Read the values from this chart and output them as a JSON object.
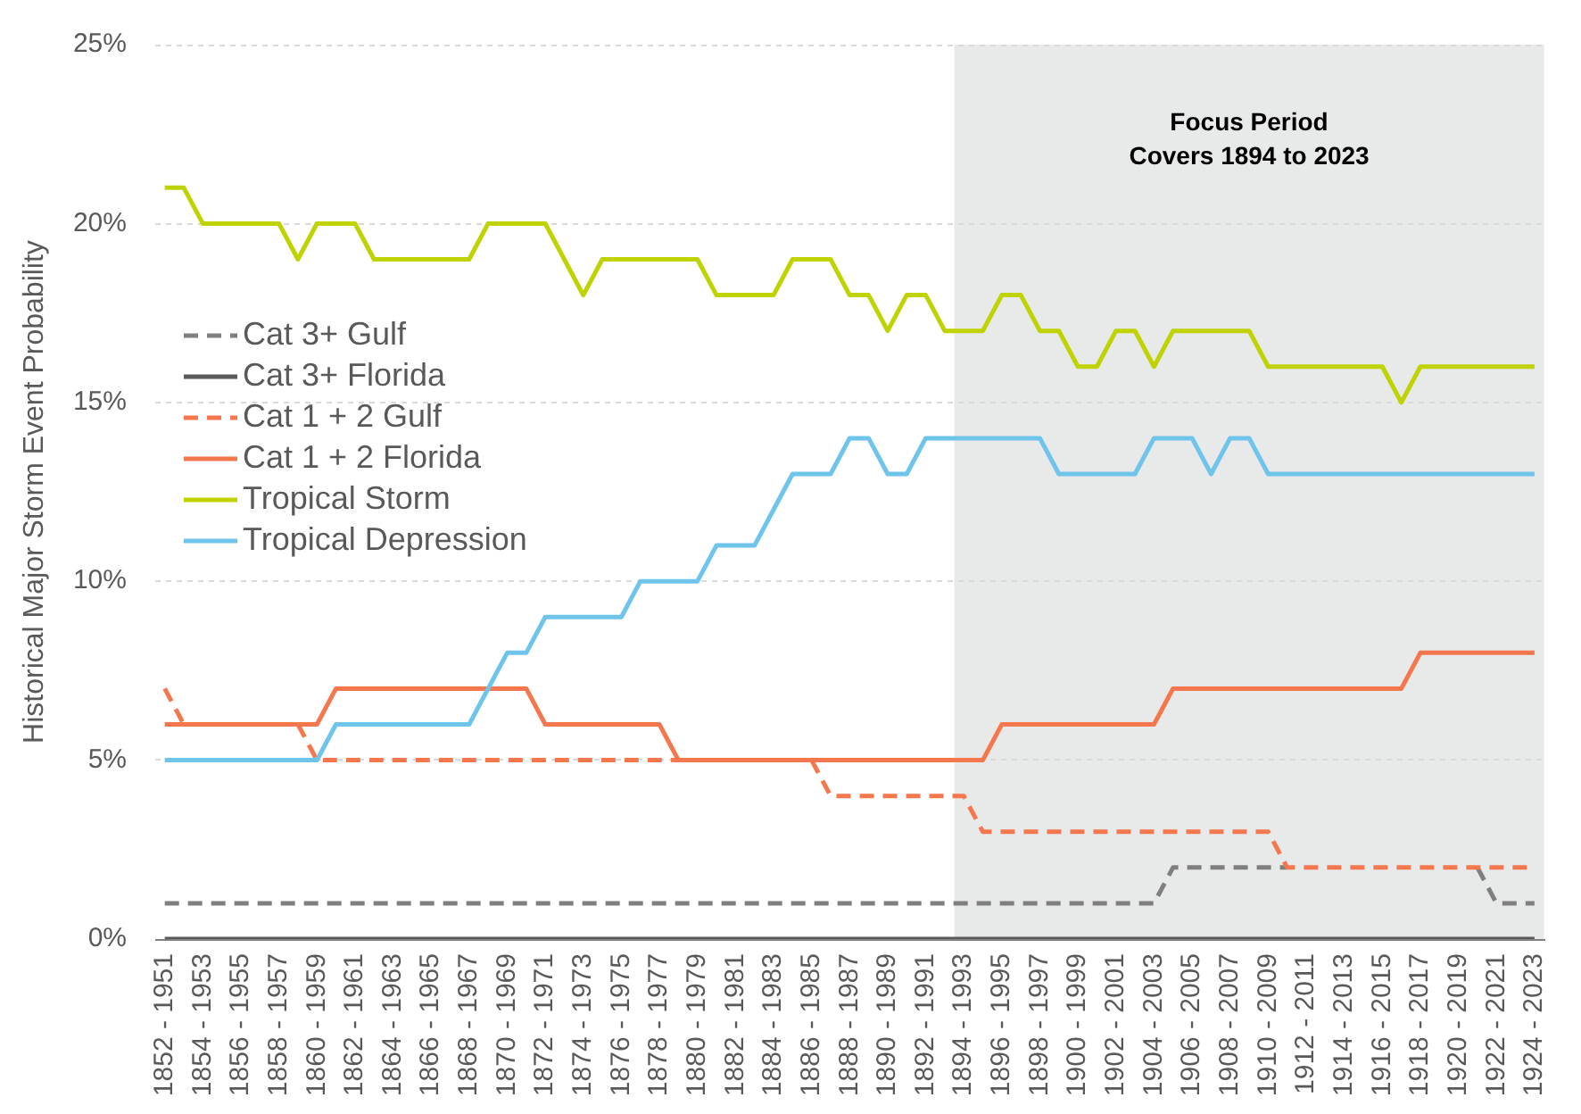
{
  "chart_data": {
    "type": "line",
    "ylabel": "Historical Major Storm Event Probability",
    "categories": [
      "1852 - 1951",
      null,
      "1854 - 1953",
      null,
      "1856 - 1955",
      null,
      "1858 - 1957",
      null,
      "1860 - 1959",
      null,
      "1862 - 1961",
      null,
      "1864 - 1963",
      null,
      "1866 - 1965",
      null,
      "1868 - 1967",
      null,
      "1870 - 1969",
      null,
      "1872 - 1971",
      null,
      "1874 - 1973",
      null,
      "1876 - 1975",
      null,
      "1878 - 1977",
      null,
      "1880 - 1979",
      null,
      "1882 - 1981",
      null,
      "1884 - 1983",
      null,
      "1886 - 1985",
      null,
      "1888 - 1987",
      null,
      "1890 - 1989",
      null,
      "1892 - 1991",
      null,
      "1894 - 1993",
      null,
      "1896 - 1995",
      null,
      "1898 - 1997",
      null,
      "1900 - 1999",
      null,
      "1902 - 2001",
      null,
      "1904 - 2003",
      null,
      "1906 - 2005",
      null,
      "1908 - 2007",
      null,
      "1910 - 2009",
      null,
      "1912 - 2011",
      null,
      "1914 - 2013",
      null,
      "1916 - 2015",
      null,
      "1918 - 2017",
      null,
      "1920 - 2019",
      null,
      "1922 - 2021",
      null,
      "1924 - 2023"
    ],
    "series": [
      {
        "name": "Cat 3+ Gulf",
        "color": "#7f7f7f",
        "line_style": "dashed",
        "values": [
          1,
          1,
          1,
          1,
          1,
          1,
          1,
          1,
          1,
          1,
          1,
          1,
          1,
          1,
          1,
          1,
          1,
          1,
          1,
          1,
          1,
          1,
          1,
          1,
          1,
          1,
          1,
          1,
          1,
          1,
          1,
          1,
          1,
          1,
          1,
          1,
          1,
          1,
          1,
          1,
          1,
          1,
          1,
          1,
          1,
          1,
          1,
          1,
          1,
          1,
          1,
          1,
          1,
          2,
          2,
          2,
          2,
          2,
          2,
          2,
          null,
          null,
          null,
          null,
          null,
          null,
          null,
          null,
          null,
          2,
          1,
          1,
          1
        ]
      },
      {
        "name": "Cat 3+ Florida",
        "color": "#595959",
        "line_style": "solid",
        "values": [
          0,
          0,
          0,
          0,
          0,
          0,
          0,
          0,
          0,
          0,
          0,
          0,
          0,
          0,
          0,
          0,
          0,
          0,
          0,
          0,
          0,
          0,
          0,
          0,
          0,
          0,
          0,
          0,
          0,
          0,
          0,
          0,
          0,
          0,
          0,
          0,
          0,
          0,
          0,
          0,
          0,
          0,
          0,
          0,
          0,
          0,
          0,
          0,
          0,
          0,
          0,
          0,
          0,
          0,
          0,
          0,
          0,
          0,
          0,
          0,
          0,
          0,
          0,
          0,
          0,
          0,
          0,
          0,
          0,
          0,
          0,
          0,
          0
        ]
      },
      {
        "name": "Cat 1 + 2 Gulf",
        "color": "#f5774e",
        "line_style": "dashed",
        "values": [
          7,
          6,
          null,
          null,
          null,
          null,
          null,
          6,
          5,
          5,
          5,
          5,
          5,
          5,
          5,
          5,
          5,
          5,
          5,
          5,
          5,
          5,
          5,
          5,
          5,
          5,
          5,
          5,
          null,
          null,
          null,
          null,
          null,
          null,
          5,
          4,
          4,
          4,
          4,
          4,
          4,
          4,
          4,
          3,
          3,
          3,
          3,
          3,
          3,
          3,
          3,
          3,
          3,
          3,
          3,
          3,
          3,
          3,
          3,
          2,
          2,
          2,
          2,
          2,
          2,
          2,
          2,
          2,
          2,
          2,
          2,
          2,
          2
        ]
      },
      {
        "name": "Cat 1 + 2 Florida",
        "color": "#f5774e",
        "line_style": "solid",
        "values": [
          6,
          6,
          6,
          6,
          6,
          6,
          6,
          6,
          6,
          7,
          7,
          7,
          7,
          7,
          7,
          7,
          7,
          7,
          7,
          7,
          6,
          6,
          6,
          6,
          6,
          6,
          6,
          5,
          5,
          5,
          5,
          5,
          5,
          5,
          5,
          5,
          5,
          5,
          5,
          5,
          5,
          5,
          5,
          5,
          6,
          6,
          6,
          6,
          6,
          6,
          6,
          6,
          6,
          7,
          7,
          7,
          7,
          7,
          7,
          7,
          7,
          7,
          7,
          7,
          7,
          7,
          8,
          8,
          8,
          8,
          8,
          8,
          8
        ]
      },
      {
        "name": "Tropical Storm",
        "color": "#bfd300",
        "line_style": "solid",
        "values": [
          21,
          21,
          20,
          20,
          20,
          20,
          20,
          19,
          20,
          20,
          20,
          19,
          19,
          19,
          19,
          19,
          19,
          20,
          20,
          20,
          20,
          19,
          18,
          19,
          19,
          19,
          19,
          19,
          19,
          18,
          18,
          18,
          18,
          19,
          19,
          19,
          18,
          18,
          17,
          18,
          18,
          17,
          17,
          17,
          18,
          18,
          17,
          17,
          16,
          16,
          17,
          17,
          16,
          17,
          17,
          17,
          17,
          17,
          16,
          16,
          16,
          16,
          16,
          16,
          16,
          15,
          16,
          16,
          16,
          16,
          16,
          16,
          16
        ]
      },
      {
        "name": "Tropical Depression",
        "color": "#6ec4ea",
        "line_style": "solid",
        "values": [
          5,
          5,
          5,
          5,
          5,
          5,
          5,
          5,
          5,
          6,
          6,
          6,
          6,
          6,
          6,
          6,
          6,
          7,
          8,
          8,
          9,
          9,
          9,
          9,
          9,
          10,
          10,
          10,
          10,
          11,
          11,
          11,
          12,
          13,
          13,
          13,
          14,
          14,
          13,
          13,
          14,
          14,
          14,
          14,
          14,
          14,
          14,
          13,
          13,
          13,
          13,
          13,
          14,
          14,
          14,
          13,
          14,
          14,
          13,
          13,
          13,
          13,
          13,
          13,
          13,
          13,
          13,
          13,
          13,
          13,
          13,
          13,
          13
        ]
      }
    ],
    "ylim": [
      0,
      25
    ],
    "yticks": [
      {
        "value": 0,
        "label": "0%"
      },
      {
        "value": 5,
        "label": "5%"
      },
      {
        "value": 10,
        "label": "10%"
      },
      {
        "value": 15,
        "label": "15%"
      },
      {
        "value": 20,
        "label": "20%"
      },
      {
        "value": 25,
        "label": "25%"
      }
    ],
    "grid": "y",
    "legend": "left",
    "marker": "none",
    "bands": [
      {
        "axis": "x",
        "from": "1894 - 1993",
        "to": "1924 - 2023",
        "label": "Focus Period\nCovers 1894 to 2023",
        "color": "#e8e9e9"
      }
    ]
  }
}
